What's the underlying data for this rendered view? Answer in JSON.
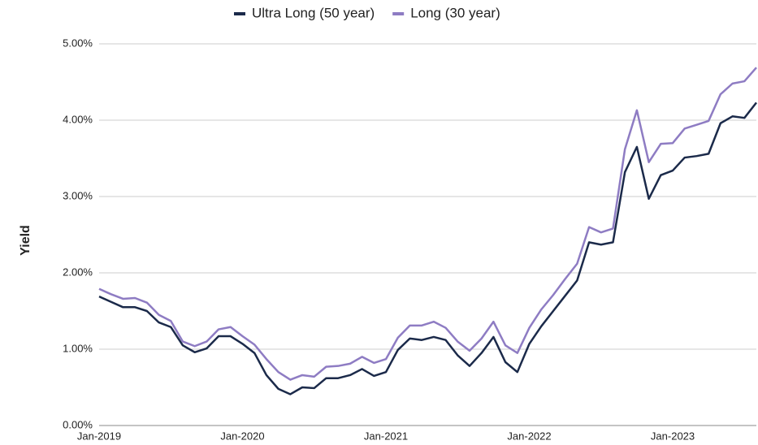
{
  "chart_data": {
    "type": "line",
    "y_label": "Yield",
    "categories": [
      "Jan-2019",
      null,
      null,
      null,
      null,
      null,
      null,
      null,
      null,
      null,
      null,
      null,
      "Jan-2020",
      null,
      null,
      null,
      null,
      null,
      null,
      null,
      null,
      null,
      null,
      null,
      "Jan-2021",
      null,
      null,
      null,
      null,
      null,
      null,
      null,
      null,
      null,
      null,
      null,
      "Jan-2022",
      null,
      null,
      null,
      null,
      null,
      null,
      null,
      null,
      null,
      null,
      null,
      "Jan-2023",
      null,
      null,
      null,
      null,
      null,
      null,
      null
    ],
    "series": [
      {
        "name": "Ultra Long (50 year)",
        "color": "#1b2a4a",
        "values": [
          1.69,
          1.62,
          1.55,
          1.55,
          1.5,
          1.35,
          1.29,
          1.05,
          0.96,
          1.01,
          1.17,
          1.17,
          1.07,
          0.95,
          0.66,
          0.48,
          0.41,
          0.5,
          0.49,
          0.62,
          0.62,
          0.66,
          0.74,
          0.65,
          0.7,
          0.99,
          1.14,
          1.12,
          1.16,
          1.12,
          0.92,
          0.78,
          0.95,
          1.16,
          0.83,
          0.7,
          1.07,
          1.3,
          1.5,
          1.7,
          1.9,
          2.4,
          2.37,
          2.4,
          3.32,
          3.65,
          2.97,
          3.28,
          3.34,
          3.51,
          3.53,
          3.56,
          3.96,
          4.05,
          4.03,
          4.23
        ]
      },
      {
        "name": "Long (30 year)",
        "color": "#8e7cc3",
        "values": [
          1.79,
          1.72,
          1.66,
          1.67,
          1.61,
          1.45,
          1.37,
          1.1,
          1.04,
          1.1,
          1.26,
          1.29,
          1.17,
          1.06,
          0.87,
          0.7,
          0.6,
          0.66,
          0.64,
          0.77,
          0.78,
          0.81,
          0.9,
          0.82,
          0.87,
          1.15,
          1.31,
          1.31,
          1.36,
          1.28,
          1.1,
          0.98,
          1.14,
          1.36,
          1.05,
          0.95,
          1.28,
          1.52,
          1.71,
          1.92,
          2.12,
          2.6,
          2.53,
          2.58,
          3.62,
          4.13,
          3.45,
          3.69,
          3.7,
          3.89,
          3.94,
          3.99,
          4.34,
          4.48,
          4.51,
          4.69
        ]
      }
    ],
    "ylim": [
      0,
      5
    ],
    "yticks": [
      {
        "value": 0,
        "label": "0.00%"
      },
      {
        "value": 1,
        "label": "1.00%"
      },
      {
        "value": 2,
        "label": "2.00%"
      },
      {
        "value": 3,
        "label": "3.00%"
      },
      {
        "value": 4,
        "label": "4.00%"
      },
      {
        "value": 5,
        "label": "5.00%"
      }
    ],
    "grid": true,
    "legend": "top"
  }
}
